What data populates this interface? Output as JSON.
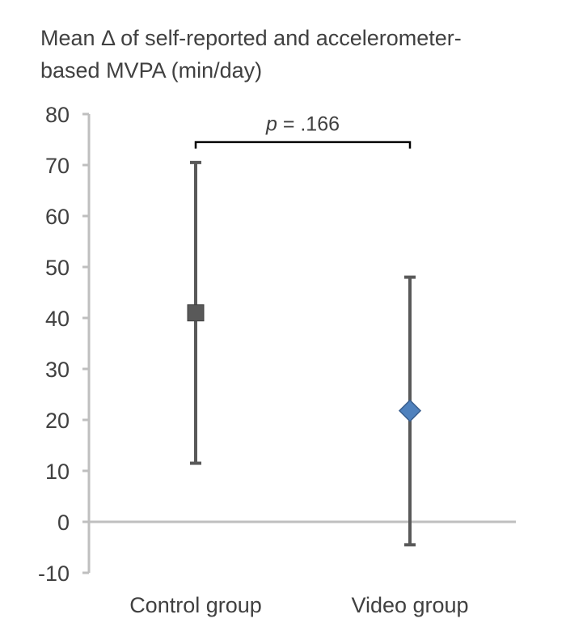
{
  "chart_data": {
    "type": "scatter",
    "title_lines": [
      "Mean Δ of self-reported and accelerometer-",
      "based MVPA (min/day)"
    ],
    "ylim": [
      -10,
      80
    ],
    "yticks": [
      80,
      70,
      60,
      50,
      40,
      30,
      20,
      10,
      0,
      -10
    ],
    "yticks_labels": [
      "80",
      "70",
      "60",
      "50",
      "40",
      "30",
      "20",
      "10",
      "0",
      "-10"
    ],
    "categories": [
      "Control group",
      "Video group"
    ],
    "points": [
      {
        "category": "Control group",
        "mean": 41,
        "lower": 11.5,
        "upper": 70.5,
        "marker": "square",
        "color": "#595959"
      },
      {
        "category": "Video group",
        "mean": 21.8,
        "lower": -4.5,
        "upper": 48,
        "marker": "diamond",
        "color": "#4f81bd"
      }
    ],
    "annotation": {
      "italic": "p",
      "text": " = .166",
      "bracket_y": 74.5
    },
    "colors": {
      "axis": "#bfbfbf",
      "errorbar": "#595959",
      "bracket": "#000000",
      "text": "#404040"
    }
  }
}
